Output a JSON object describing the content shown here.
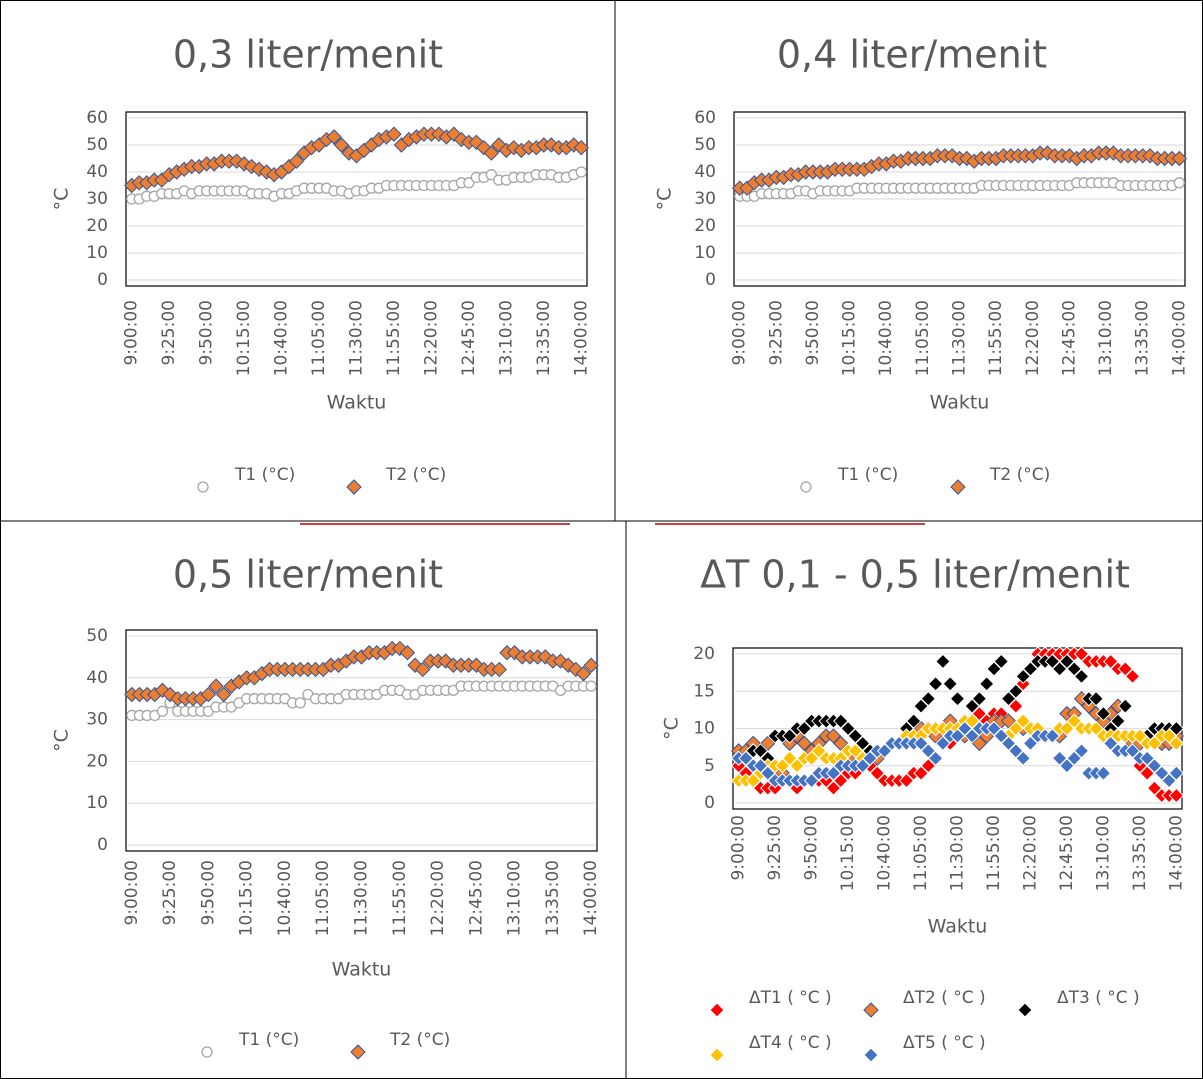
{
  "chart_data": [
    {
      "type": "scatter",
      "title": "0,3 liter/menit",
      "x_label": "Waktu",
      "y_label": "°C",
      "categories": [
        "9:00:00",
        null,
        null,
        null,
        null,
        "9:25:00",
        null,
        null,
        null,
        null,
        "9:50:00",
        null,
        null,
        null,
        null,
        "10:15:00",
        null,
        null,
        null,
        null,
        "10:40:00",
        null,
        null,
        null,
        null,
        "11:05:00",
        null,
        null,
        null,
        null,
        "11:30:00",
        null,
        null,
        null,
        null,
        "11:55:00",
        null,
        null,
        null,
        null,
        "12:20:00",
        null,
        null,
        null,
        null,
        "12:45:00",
        null,
        null,
        null,
        null,
        "13:10:00",
        null,
        null,
        null,
        null,
        "13:35:00",
        null,
        null,
        null,
        null,
        "14:00:00"
      ],
      "ylim": [
        0,
        60
      ],
      "yticks": [
        0,
        10,
        20,
        30,
        40,
        50,
        60
      ],
      "grid": true,
      "series": [
        {
          "name": "T1 (°C)",
          "marker": "circle",
          "color": "#a5a5a5",
          "values": [
            30,
            30,
            31,
            31,
            32,
            32,
            32,
            33,
            32,
            33,
            33,
            33,
            33,
            33,
            33,
            33,
            32,
            32,
            32,
            31,
            32,
            32,
            33,
            34,
            34,
            34,
            34,
            33,
            33,
            32,
            33,
            33,
            34,
            34,
            35,
            35,
            35,
            35,
            35,
            35,
            35,
            35,
            35,
            35,
            36,
            36,
            38,
            38,
            39,
            37,
            37,
            38,
            38,
            38,
            39,
            39,
            39,
            38,
            38,
            39,
            40
          ]
        },
        {
          "name": "T2 (°C)",
          "marker": "diamond",
          "color": "#ed7d31",
          "values": [
            35,
            36,
            36,
            37,
            37,
            39,
            40,
            41,
            42,
            42,
            43,
            43,
            44,
            44,
            44,
            43,
            42,
            41,
            40,
            39,
            40,
            42,
            44,
            47,
            49,
            50,
            52,
            53,
            50,
            47,
            46,
            48,
            50,
            52,
            53,
            54,
            50,
            52,
            53,
            54,
            54,
            54,
            53,
            54,
            52,
            51,
            51,
            49,
            47,
            50,
            48,
            49,
            48,
            49,
            49,
            50,
            50,
            49,
            49,
            50,
            49
          ]
        }
      ]
    },
    {
      "type": "scatter",
      "title": "0,4 liter/menit",
      "x_label": "Waktu",
      "y_label": "°C",
      "categories": [
        "9:00:00",
        null,
        null,
        null,
        null,
        "9:25:00",
        null,
        null,
        null,
        null,
        "9:50:00",
        null,
        null,
        null,
        null,
        "10:15:00",
        null,
        null,
        null,
        null,
        "10:40:00",
        null,
        null,
        null,
        null,
        "11:05:00",
        null,
        null,
        null,
        null,
        "11:30:00",
        null,
        null,
        null,
        null,
        "11:55:00",
        null,
        null,
        null,
        null,
        "12:20:00",
        null,
        null,
        null,
        null,
        "12:45:00",
        null,
        null,
        null,
        null,
        "13:10:00",
        null,
        null,
        null,
        null,
        "13:35:00",
        null,
        null,
        null,
        null,
        "14:00:00"
      ],
      "ylim": [
        0,
        60
      ],
      "yticks": [
        0,
        10,
        20,
        30,
        40,
        50,
        60
      ],
      "grid": true,
      "series": [
        {
          "name": "T1 (°C)",
          "marker": "circle",
          "color": "#a5a5a5",
          "values": [
            31,
            31,
            31,
            32,
            32,
            32,
            32,
            32,
            33,
            33,
            32,
            33,
            33,
            33,
            33,
            33,
            34,
            34,
            34,
            34,
            34,
            34,
            34,
            34,
            34,
            34,
            34,
            34,
            34,
            34,
            34,
            34,
            34,
            35,
            35,
            35,
            35,
            35,
            35,
            35,
            35,
            35,
            35,
            35,
            35,
            35,
            36,
            36,
            36,
            36,
            36,
            36,
            35,
            35,
            35,
            35,
            35,
            35,
            35,
            35,
            36
          ]
        },
        {
          "name": "T2 (°C)",
          "marker": "diamond",
          "color": "#ed7d31",
          "values": [
            34,
            34,
            36,
            37,
            37,
            38,
            38,
            39,
            39,
            40,
            40,
            40,
            40,
            41,
            41,
            41,
            41,
            41,
            42,
            43,
            43,
            44,
            44,
            45,
            45,
            45,
            45,
            46,
            46,
            46,
            45,
            45,
            44,
            45,
            45,
            45,
            46,
            46,
            46,
            46,
            46,
            47,
            47,
            46,
            46,
            46,
            45,
            46,
            46,
            47,
            47,
            47,
            46,
            46,
            46,
            46,
            46,
            45,
            45,
            45,
            45
          ]
        }
      ]
    },
    {
      "type": "scatter",
      "title": "0,5 liter/menit",
      "x_label": "Waktu",
      "y_label": "°C",
      "categories": [
        "9:00:00",
        null,
        null,
        null,
        null,
        "9:25:00",
        null,
        null,
        null,
        null,
        "9:50:00",
        null,
        null,
        null,
        null,
        "10:15:00",
        null,
        null,
        null,
        null,
        "10:40:00",
        null,
        null,
        null,
        null,
        "11:05:00",
        null,
        null,
        null,
        null,
        "11:30:00",
        null,
        null,
        null,
        null,
        "11:55:00",
        null,
        null,
        null,
        null,
        "12:20:00",
        null,
        null,
        null,
        null,
        "12:45:00",
        null,
        null,
        null,
        null,
        "13:10:00",
        null,
        null,
        null,
        null,
        "13:35:00",
        null,
        null,
        null,
        null,
        "14:00:00"
      ],
      "ylim": [
        0,
        50
      ],
      "yticks": [
        0,
        10,
        20,
        30,
        40,
        50
      ],
      "grid": true,
      "series": [
        {
          "name": "T1 (°C)",
          "marker": "circle",
          "color": "#a5a5a5",
          "values": [
            31,
            31,
            31,
            31,
            32,
            34,
            32,
            32,
            32,
            32,
            32,
            33,
            33,
            33,
            34,
            35,
            35,
            35,
            35,
            35,
            35,
            34,
            34,
            36,
            35,
            35,
            35,
            35,
            36,
            36,
            36,
            36,
            36,
            37,
            37,
            37,
            36,
            36,
            37,
            37,
            37,
            37,
            37,
            38,
            38,
            38,
            38,
            38,
            38,
            38,
            38,
            38,
            38,
            38,
            38,
            38,
            37,
            38,
            38,
            38,
            38
          ]
        },
        {
          "name": "T2 (°C)",
          "marker": "diamond",
          "color": "#ed7d31",
          "values": [
            36,
            36,
            36,
            36,
            37,
            36,
            35,
            35,
            35,
            35,
            36,
            38,
            36,
            38,
            39,
            40,
            40,
            41,
            42,
            42,
            42,
            42,
            42,
            42,
            42,
            42,
            43,
            43,
            44,
            45,
            45,
            46,
            46,
            46,
            47,
            47,
            46,
            43,
            42,
            44,
            44,
            44,
            43,
            43,
            43,
            43,
            42,
            42,
            42,
            46,
            46,
            45,
            45,
            45,
            45,
            44,
            44,
            43,
            42,
            41,
            43
          ]
        }
      ]
    },
    {
      "type": "scatter",
      "title": "ΔT 0,1 - 0,5 liter/menit",
      "x_label": "Waktu",
      "y_label": "°C",
      "categories": [
        "9:00:00",
        null,
        null,
        null,
        null,
        "9:25:00",
        null,
        null,
        null,
        null,
        "9:50:00",
        null,
        null,
        null,
        null,
        "10:15:00",
        null,
        null,
        null,
        null,
        "10:40:00",
        null,
        null,
        null,
        null,
        "11:05:00",
        null,
        null,
        null,
        null,
        "11:30:00",
        null,
        null,
        null,
        null,
        "11:55:00",
        null,
        null,
        null,
        null,
        "12:20:00",
        null,
        null,
        null,
        null,
        "12:45:00",
        null,
        null,
        null,
        null,
        "13:10:00",
        null,
        null,
        null,
        null,
        "13:35:00",
        null,
        null,
        null,
        null,
        "14:00:00"
      ],
      "ylim": [
        0,
        20
      ],
      "yticks": [
        0,
        5,
        10,
        15,
        20
      ],
      "grid": true,
      "series": [
        {
          "name": "ΔT1 ( °C )",
          "marker": "diamond",
          "color": "#ff0000",
          "values": [
            5,
            4,
            3,
            2,
            2,
            2,
            3,
            3,
            2,
            3,
            3,
            3,
            3,
            2,
            3,
            4,
            4,
            5,
            5,
            4,
            3,
            3,
            3,
            3,
            4,
            4,
            5,
            6,
            8,
            8,
            9,
            10,
            11,
            12,
            11,
            12,
            12,
            11,
            13,
            16,
            18,
            20,
            20,
            20,
            20,
            20,
            20,
            20,
            19,
            19,
            19,
            19,
            18,
            18,
            17,
            5,
            4,
            2,
            1,
            1,
            1
          ]
        },
        {
          "name": "ΔT2 ( °C )",
          "marker": "diamond",
          "color": "#ed7d31",
          "values": [
            7,
            7,
            8,
            7,
            8,
            5,
            4,
            8,
            9,
            8,
            7,
            8,
            9,
            9,
            8,
            6,
            5,
            5,
            6,
            6,
            7,
            8,
            8,
            9,
            10,
            10,
            10,
            9,
            10,
            11,
            10,
            9,
            9,
            8,
            9,
            11,
            11,
            11,
            10,
            10,
            10,
            9,
            9,
            9,
            9,
            12,
            12,
            14,
            13,
            12,
            11,
            12,
            13,
            9,
            8,
            8,
            9,
            8,
            8,
            8,
            9
          ]
        },
        {
          "name": "ΔT3 ( °C )",
          "marker": "diamond",
          "color": "#000000",
          "values": [
            6,
            6,
            7,
            7,
            6,
            9,
            9,
            9,
            10,
            10,
            11,
            11,
            11,
            11,
            11,
            10,
            9,
            8,
            7,
            7,
            7,
            8,
            8,
            10,
            11,
            13,
            14,
            16,
            19,
            16,
            14,
            11,
            13,
            14,
            16,
            18,
            19,
            14,
            15,
            17,
            18,
            19,
            19,
            19,
            18,
            19,
            18,
            17,
            14,
            14,
            12,
            10,
            11,
            13,
            9,
            9,
            9,
            10,
            10,
            10,
            10
          ]
        },
        {
          "name": "ΔT4 ( °C )",
          "marker": "diamond",
          "color": "#ffc000",
          "values": [
            3,
            3,
            3,
            4,
            5,
            5,
            5,
            6,
            5,
            6,
            6,
            7,
            6,
            6,
            6,
            7,
            7,
            6,
            6,
            7,
            7,
            8,
            8,
            9,
            9,
            9,
            10,
            10,
            10,
            10,
            10,
            11,
            11,
            10,
            10,
            10,
            9,
            9,
            10,
            11,
            10,
            10,
            9,
            9,
            10,
            10,
            11,
            10,
            10,
            10,
            9,
            9,
            9,
            9,
            9,
            9,
            8,
            8,
            9,
            9,
            8
          ]
        },
        {
          "name": "ΔT5 ( °C )",
          "marker": "diamond",
          "color": "#4472c4",
          "values": [
            6,
            6,
            5,
            5,
            4,
            3,
            3,
            3,
            3,
            3,
            3,
            4,
            4,
            4,
            5,
            5,
            5,
            5,
            6,
            7,
            7,
            8,
            8,
            8,
            8,
            8,
            7,
            6,
            8,
            9,
            9,
            10,
            9,
            10,
            10,
            10,
            9,
            8,
            7,
            6,
            8,
            9,
            9,
            9,
            6,
            5,
            6,
            7,
            4,
            4,
            4,
            8,
            7,
            7,
            7,
            6,
            6,
            5,
            4,
            3,
            4
          ]
        }
      ]
    }
  ]
}
